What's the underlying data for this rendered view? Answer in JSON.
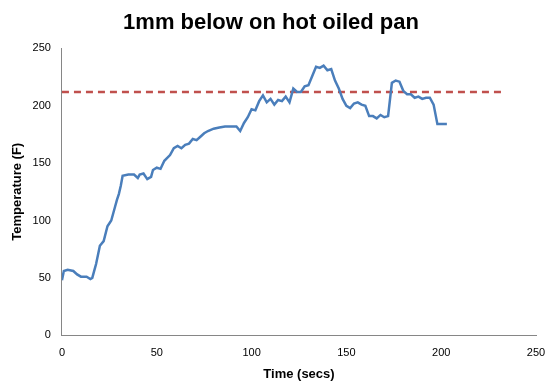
{
  "chart_data": {
    "type": "line",
    "title": "1mm below on hot oiled pan",
    "x_label": "Time (secs)",
    "y_label": "Temperature (F)",
    "xlim": [
      0,
      250
    ],
    "xticks": [
      0,
      50,
      100,
      150,
      200,
      250
    ],
    "ylim": [
      0,
      250
    ],
    "yticks": [
      0,
      50,
      100,
      150,
      200,
      250
    ],
    "grid": false,
    "series": [
      {
        "color": "#4a7ebb",
        "line_style": "solid",
        "x": [
          0,
          1,
          3,
          6,
          8,
          10,
          13,
          15,
          16,
          17,
          18,
          20,
          22,
          24,
          26,
          28,
          29,
          30,
          31,
          32,
          35,
          38,
          40,
          41,
          43,
          45,
          47,
          48,
          50,
          52,
          54,
          57,
          59,
          61,
          63,
          65,
          67,
          69,
          71,
          73,
          75,
          77,
          80,
          83,
          86,
          90,
          92,
          94,
          96,
          98,
          100,
          102,
          104,
          106,
          108,
          110,
          112,
          114,
          116,
          118,
          120,
          122,
          124,
          126,
          128,
          130,
          132,
          134,
          136,
          138,
          140,
          142,
          144,
          146,
          148,
          150,
          152,
          154,
          156,
          158,
          160,
          162,
          164,
          166,
          168,
          170,
          172,
          174,
          176,
          178,
          180,
          182,
          184,
          186,
          188,
          190,
          192,
          194,
          196,
          198,
          200,
          203
        ],
        "values": [
          48,
          56,
          57,
          56,
          53,
          51,
          51,
          49,
          50,
          56,
          62,
          78,
          82,
          95,
          100,
          112,
          118,
          123,
          130,
          139,
          140,
          140,
          137,
          140,
          141,
          136,
          138,
          144,
          146,
          145,
          152,
          157,
          163,
          165,
          163,
          166,
          167,
          171,
          170,
          173,
          176,
          178,
          180,
          181,
          182,
          182,
          182,
          178,
          185,
          190,
          197,
          196,
          204,
          209,
          203,
          206,
          201,
          205,
          204,
          208,
          203,
          215,
          212,
          212,
          217,
          218,
          226,
          234,
          233,
          235,
          231,
          232,
          222,
          215,
          206,
          200,
          198,
          202,
          203,
          201,
          200,
          191,
          191,
          189,
          192,
          190,
          191,
          220,
          222,
          221,
          213,
          210,
          210,
          207,
          208,
          206,
          207,
          207,
          201,
          184,
          184,
          184
        ]
      },
      {
        "color": "#c0504d",
        "line_style": "dashed",
        "x": [
          0,
          233
        ],
        "values": [
          212,
          212
        ]
      }
    ]
  }
}
